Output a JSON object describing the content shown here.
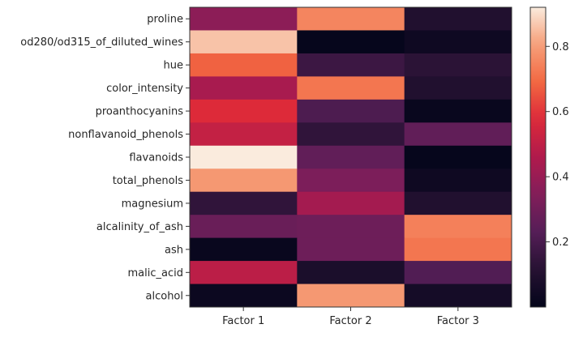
{
  "chart_data": {
    "type": "heatmap",
    "title": "",
    "xlabel": "",
    "ylabel": "",
    "x_categories": [
      "Factor 1",
      "Factor 2",
      "Factor 3"
    ],
    "y_categories": [
      "proline",
      "od280/od315_of_diluted_wines",
      "hue",
      "color_intensity",
      "proanthocyanins",
      "nonflavanoid_phenols",
      "flavanoids",
      "total_phenols",
      "magnesium",
      "alcalinity_of_ash",
      "ash",
      "malic_acid",
      "alcohol"
    ],
    "values": [
      [
        0.37,
        0.75,
        0.1
      ],
      [
        0.86,
        0.01,
        0.04
      ],
      [
        0.68,
        0.17,
        0.13
      ],
      [
        0.44,
        0.72,
        0.1
      ],
      [
        0.58,
        0.21,
        0.02
      ],
      [
        0.51,
        0.14,
        0.26
      ],
      [
        0.92,
        0.26,
        0.01
      ],
      [
        0.79,
        0.33,
        0.04
      ],
      [
        0.14,
        0.43,
        0.1
      ],
      [
        0.28,
        0.29,
        0.74
      ],
      [
        0.02,
        0.29,
        0.72
      ],
      [
        0.49,
        0.08,
        0.22
      ],
      [
        0.03,
        0.79,
        0.06
      ]
    ],
    "colorscale": "rocket",
    "vmin": 0.0,
    "vmax": 0.92,
    "colorbar_ticks": [
      "0.2",
      "0.4",
      "0.6",
      "0.8"
    ],
    "colorbar_tick_values": [
      0.2,
      0.4,
      0.6,
      0.8
    ]
  }
}
